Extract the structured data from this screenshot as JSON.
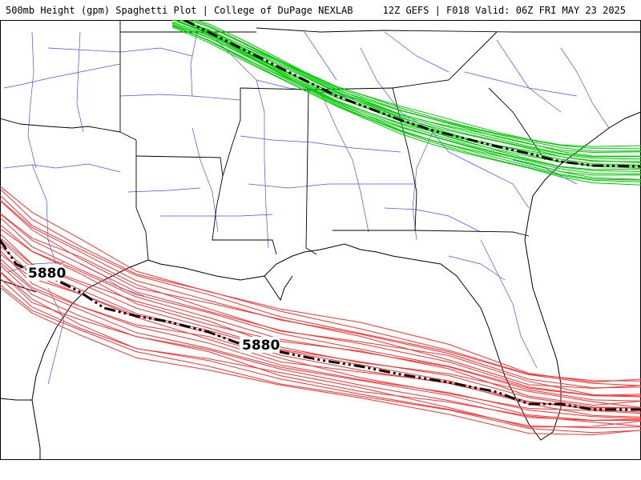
{
  "header": {
    "left_title": "500mb Height (gpm) Spaghetti Plot | College of DuPage NEXLAB",
    "right_title": "12Z GEFS | F018 Valid: 06Z FRI MAY 23 2025"
  },
  "map": {
    "contour_label": "5880",
    "colors": {
      "red_members": "#ff3333",
      "green_members": "#00cc00",
      "mean_line": "#000000",
      "coastline": "#000000",
      "roads": "#4455ee"
    }
  }
}
